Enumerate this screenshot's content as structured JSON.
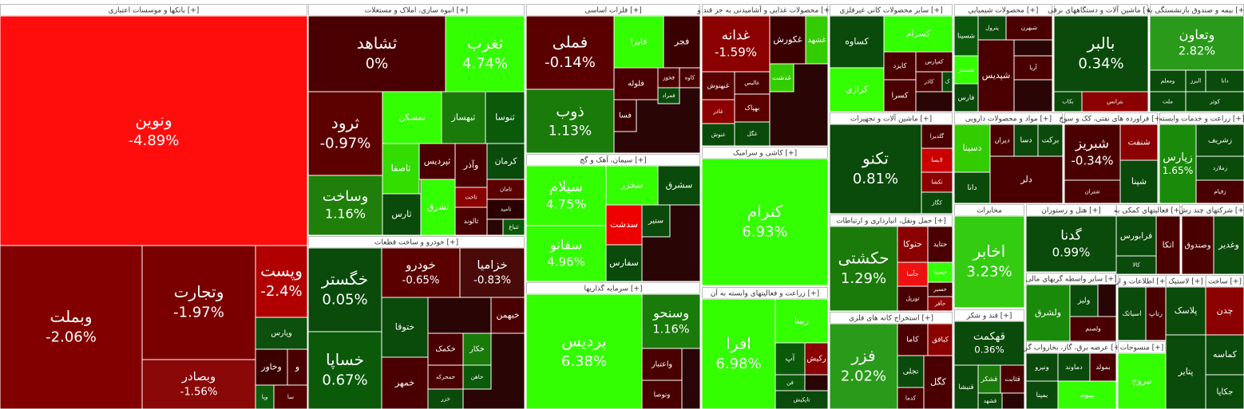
{
  "chart_data": {
    "type": "treemap",
    "sectors": [
      {
        "title": "بانکها و موسسات اعتباری [+]",
        "tiles": [
          {
            "name": "ونوین",
            "change": -4.89,
            "change_label": "-4.89%",
            "color": "#ff0d0d"
          },
          {
            "name": "وبملت",
            "change": -2.06,
            "change_label": "-2.06%",
            "color": "#820000"
          },
          {
            "name": "وتجارت",
            "change": -1.97,
            "change_label": "-1.97%",
            "color": "#7a0000"
          },
          {
            "name": "وبصادر",
            "change": -1.56,
            "change_label": "-1.56%",
            "color": "#8a0808"
          },
          {
            "name": "وپست",
            "change": -2.4,
            "change_label": "-2.4%",
            "color": "#b00000"
          },
          {
            "name": "وپارس",
            "color": "#0d4f0d"
          },
          {
            "name": "وخاور",
            "color": "#3a0000"
          },
          {
            "name": "و",
            "color": "#4a0000"
          },
          {
            "name": "سا",
            "color": "#550000"
          },
          {
            "name": "وپا",
            "color": "#0d5e0d"
          }
        ]
      },
      {
        "title": "انبوه سازی، املاک و مستغلات [+]",
        "tiles": [
          {
            "name": "ثشاهد",
            "change": 0,
            "change_label": "0%",
            "color": "#4a0000"
          },
          {
            "name": "ثغرب",
            "change": 4.74,
            "change_label": "4.74%",
            "color": "#33ff00"
          },
          {
            "name": "ثرود",
            "change": -0.97,
            "change_label": "-0.97%",
            "color": "#5c0000"
          },
          {
            "name": "وساخت",
            "change": 1.16,
            "change_label": "1.16%",
            "color": "#1f7f0a"
          },
          {
            "name": "ثمسکن",
            "color": "#33ff00"
          },
          {
            "name": "ثبهساز",
            "color": "#1a7a0a"
          },
          {
            "name": "ثنوسا",
            "color": "#0a5a0a"
          },
          {
            "name": "ثاصفا",
            "color": "#33dd00"
          },
          {
            "name": "ثپردیس",
            "color": "#4a0000"
          },
          {
            "name": "وآذر",
            "color": "#4a0000"
          },
          {
            "name": "کرمان",
            "color": "#0a4a0a"
          },
          {
            "name": "ثارس",
            "color": "#0a4a0a"
          },
          {
            "name": "ثشرق",
            "color": "#33ff00"
          },
          {
            "name": "ثاخت",
            "color": "#8b0000"
          },
          {
            "name": "ثامان",
            "color": "#5a0000"
          },
          {
            "name": "ثالوند",
            "color": "#4a0000"
          },
          {
            "name": "ثامید",
            "color": "#2a0000"
          },
          {
            "name": "ثتباع",
            "color": "#0a5a0a"
          }
        ]
      },
      {
        "title": "خودرو و ساخت قطعات [+]",
        "tiles": [
          {
            "name": "خگستر",
            "change": 0.05,
            "change_label": "0.05%",
            "color": "#0a4a0a"
          },
          {
            "name": "خساپا",
            "change": 0.67,
            "change_label": "0.67%",
            "color": "#0a5a0a"
          },
          {
            "name": "خودرو",
            "change": -0.65,
            "change_label": "-0.65%",
            "color": "#5a0000"
          },
          {
            "name": "خزامیا",
            "change": -0.83,
            "change_label": "-0.83%",
            "color": "#4a0a0a"
          },
          {
            "name": "خبهمن",
            "color": "#4a0000"
          },
          {
            "name": "خکمک",
            "color": "#4a0000"
          },
          {
            "name": "خکار",
            "color": "#1a7a0a"
          },
          {
            "name": "خمحرکه",
            "color": "#4a0000"
          },
          {
            "name": "خزر",
            "color": "#0a4a0a"
          },
          {
            "name": "ختوقا",
            "color": "#0a4a0a"
          },
          {
            "name": "خاهن",
            "color": "#0a5a0a"
          },
          {
            "name": "خمهر",
            "color": "#4a0000"
          }
        ]
      },
      {
        "title": "فلزات اساسی [+]",
        "tiles": [
          {
            "name": "فملی",
            "change": -0.14,
            "change_label": "-0.14%",
            "color": "#5a0000"
          },
          {
            "name": "ذوب",
            "change": 1.13,
            "change_label": "1.13%",
            "color": "#1a7a0a"
          },
          {
            "name": "فایرا",
            "color": "#33ff00"
          },
          {
            "name": "فجر",
            "color": "#3a0000"
          },
          {
            "name": "فلوله",
            "color": "#4a0000"
          },
          {
            "name": "فخوز",
            "color": "#4a0000"
          },
          {
            "name": "کاوه",
            "color": "#4a0000"
          },
          {
            "name": "فمراد",
            "color": "#0a4a0a"
          },
          {
            "name": "فسا",
            "color": "#3a0000"
          }
        ]
      },
      {
        "title": "سیمان، آهک و گچ [+]",
        "tiles": [
          {
            "name": "سیلام",
            "change": 4.75,
            "change_label": "4.75%",
            "color": "#33ff00"
          },
          {
            "name": "سفانو",
            "change": 4.96,
            "change_label": "4.96%",
            "color": "#33ff00"
          },
          {
            "name": "سخزر",
            "color": "#33ff00"
          },
          {
            "name": "سشرق",
            "color": "#0a4a0a"
          },
          {
            "name": "سدشت",
            "color": "#ee0000"
          },
          {
            "name": "ستیر",
            "color": "#0a4a0a"
          },
          {
            "name": "سفارس",
            "color": "#0a4a0a"
          }
        ]
      },
      {
        "title": "سرمایه گذاریها [+]",
        "tiles": [
          {
            "name": "پردیس",
            "change": 6.38,
            "change_label": "6.38%",
            "color": "#33ff00"
          },
          {
            "name": "وسنحو",
            "change": 1.16,
            "change_label": "1.16%",
            "color": "#1a7a0a"
          },
          {
            "name": "واعتبار",
            "color": "#4a0000"
          },
          {
            "name": "وتوصا",
            "color": "#4a0000"
          }
        ]
      },
      {
        "title": "محصولات غذایی و آشامیدنی به جز قند و [+]",
        "tiles": [
          {
            "name": "غدانه",
            "change": -1.59,
            "change_label": "-1.59%",
            "color": "#8b0000"
          },
          {
            "name": "غکورش",
            "color": "#3a0000"
          },
          {
            "name": "غشهد",
            "color": "#33cc00"
          },
          {
            "name": "عالیس",
            "color": "#4a0000"
          },
          {
            "name": "غبهنوش",
            "color": "#5a0000"
          },
          {
            "name": "غاذر",
            "color": "#8b0000"
          },
          {
            "name": "غنوش",
            "color": "#0a4a0a"
          },
          {
            "name": "غدشت",
            "color": "#33cc00"
          },
          {
            "name": "بهپاک",
            "color": "#5a0000"
          },
          {
            "name": "غگل",
            "color": "#0a4a0a"
          }
        ]
      },
      {
        "title": "کاشی و سرامیک [+]",
        "tiles": [
          {
            "name": "کترام",
            "change": 6.93,
            "change_label": "6.93%",
            "color": "#33ff00"
          }
        ]
      },
      {
        "title": "زراعت و فعالیتهای وابسته به آن [+]",
        "tiles": [
          {
            "name": "افرا",
            "change": 6.98,
            "change_label": "6.98%",
            "color": "#33ff00"
          },
          {
            "name": "زبینا",
            "color": "#33ff00"
          },
          {
            "name": "آپ",
            "color": "#0a5a0a"
          },
          {
            "name": "رکیش",
            "color": "#8b0000"
          },
          {
            "name": "فن",
            "color": "#0a5a0a"
          },
          {
            "name": "تاپکیش",
            "color": "#0a4a0a"
          }
        ]
      },
      {
        "title": "سایر محصولات کانی غیرفلزی [+]",
        "tiles": [
          {
            "name": "کساوه",
            "color": "#0a4a0a"
          },
          {
            "name": "کسرام",
            "color": "#33ff00"
          },
          {
            "name": "کرازی",
            "color": "#33ff00"
          },
          {
            "name": "کایزد",
            "color": "#4a0000"
          },
          {
            "name": "کفپارس",
            "color": "#4a0000"
          },
          {
            "name": "کاذر",
            "color": "#4a0000"
          },
          {
            "name": "کسرا",
            "color": "#4a0000"
          },
          {
            "name": "ک",
            "color": "#0a4a0a"
          }
        ]
      },
      {
        "title": "ماشین آلات و تجهیزات [+]",
        "tiles": [
          {
            "name": "تکنو",
            "change": 0.81,
            "change_label": "0.81%",
            "color": "#0a4a0a"
          },
          {
            "name": "گلدیرا",
            "color": "#4a0000"
          },
          {
            "name": "لابسا",
            "color": "#cc0000"
          },
          {
            "name": "تکشا",
            "color": "#8b0000"
          },
          {
            "name": "کگاز",
            "color": "#0a4a0a"
          }
        ]
      },
      {
        "title": "حمل ونقل، انبارداری و ارتباطات [+]",
        "tiles": [
          {
            "name": "حکشتی",
            "change": 1.29,
            "change_label": "1.29%",
            "color": "#1a7a0a"
          },
          {
            "name": "حتوکا",
            "color": "#8b0000"
          },
          {
            "name": "حتاید",
            "color": "#4a0000"
          },
          {
            "name": "حآسا",
            "color": "#ee1111"
          },
          {
            "name": "حسینا",
            "color": "#33ff00"
          },
          {
            "name": "تورپل",
            "color": "#4a0000"
          },
          {
            "name": "حسیر",
            "color": "#4a0000"
          },
          {
            "name": "حآفر",
            "color": "#8b0000"
          }
        ]
      },
      {
        "title": "استخراج کانه های فلزی [+]",
        "tiles": [
          {
            "name": "فزر",
            "change": 2.02,
            "change_label": "2.02%",
            "color": "#2a9a1a"
          },
          {
            "name": "کاما",
            "color": "#4a0000"
          },
          {
            "name": "کبافق",
            "color": "#8b0000"
          },
          {
            "name": "تجلی",
            "color": "#0a4a0a"
          },
          {
            "name": "کدما",
            "color": "#4a0000"
          },
          {
            "name": "کگل",
            "color": "#4a0000"
          }
        ]
      },
      {
        "title": "محصولات شیمیایی [+]",
        "tiles": [
          {
            "name": "شسینا",
            "color": "#0a5a0a"
          },
          {
            "name": "پترول",
            "color": "#0a4a0a"
          },
          {
            "name": "شبهرن",
            "color": "#4a0000"
          },
          {
            "name": "شبندر",
            "color": "#33ff00"
          },
          {
            "name": "آریا",
            "color": "#4a0000"
          },
          {
            "name": "فارس",
            "color": "#0a4a0a"
          },
          {
            "name": "شپدیس",
            "color": "#4a0000"
          }
        ]
      },
      {
        "title": "مواد و محصولات دارویی [+]",
        "tiles": [
          {
            "name": "دسینا",
            "color": "#33cc00"
          },
          {
            "name": "دانا",
            "color": "#0a4a0a"
          },
          {
            "name": "دیران",
            "color": "#4a0000"
          },
          {
            "name": "دسا",
            "color": "#0a4a0a"
          },
          {
            "name": "برکت",
            "color": "#0a4a0a"
          },
          {
            "name": "دلر",
            "color": "#4a0000"
          }
        ]
      },
      {
        "title": "مخابرات",
        "tiles": [
          {
            "name": "اخابر",
            "change": 3.23,
            "change_label": "3.23%",
            "color": "#33cc11"
          }
        ]
      },
      {
        "title": "قند و شکر [+]",
        "tiles": [
          {
            "name": "قهکمت",
            "change": 0.36,
            "change_label": "0.36%",
            "color": "#0a4a0a"
          },
          {
            "name": "قنیشا",
            "color": "#0a4a0a"
          },
          {
            "name": "قشکر",
            "color": "#1a7a0a"
          },
          {
            "name": "قشهد",
            "color": "#0a4a0a"
          },
          {
            "name": "قثابت",
            "color": "#4a0000"
          }
        ]
      },
      {
        "title": "ماشین آلات و دستگاههای برقی [+]",
        "tiles": [
          {
            "name": "بالبر",
            "change": 0.34,
            "change_label": "0.34%",
            "color": "#0a4a0a"
          },
          {
            "name": "بکاب",
            "color": "#0a4a0a"
          },
          {
            "name": "بترانس",
            "color": "#8b0000"
          }
        ]
      },
      {
        "title": "بیمه و صندوق بازنشستگی به [+]",
        "tiles": [
          {
            "name": "وتعاون",
            "change": 2.82,
            "change_label": "2.82%",
            "color": "#2a9a1a"
          },
          {
            "name": "ومعلم",
            "color": "#0a4a0a"
          },
          {
            "name": "البرز",
            "color": "#0a4a0a"
          },
          {
            "name": "دانا",
            "color": "#0a4a0a"
          },
          {
            "name": "ملت",
            "color": "#0a4a0a"
          },
          {
            "name": "کوثر",
            "color": "#0a4a0a"
          }
        ]
      },
      {
        "title": "فراورده های نفتی، کک و سوخ [+]",
        "tiles": [
          {
            "name": "شبریز",
            "change": -0.34,
            "change_label": "-0.34%",
            "color": "#4a0000"
          },
          {
            "name": "شنفت",
            "color": "#8b0000"
          },
          {
            "name": "شپنا",
            "color": "#0a4a0a"
          },
          {
            "name": "شتران",
            "color": "#4a0000"
          }
        ]
      },
      {
        "title": "زراعت و خدمات وابسته [+]",
        "tiles": [
          {
            "name": "زپارس",
            "change": 1.65,
            "change_label": "1.65%",
            "color": "#1a8a0a"
          },
          {
            "name": "زشریف",
            "color": "#0a4a0a"
          },
          {
            "name": "زملارد",
            "color": "#0a4a0a"
          },
          {
            "name": "زقیام",
            "color": "#4a0000"
          }
        ]
      },
      {
        "title": "هتل و رستوران [+]",
        "tiles": [
          {
            "name": "گدنا",
            "change": 0.99,
            "change_label": "0.99%",
            "color": "#0a4a0a"
          }
        ]
      },
      {
        "title": "فعالیتهای کمکی به [+]",
        "tiles": [
          {
            "name": "فرابورس",
            "color": "#0a4a0a"
          },
          {
            "name": "اتکا",
            "color": "#4a0000"
          },
          {
            "name": "کالا",
            "color": "#0a4a0a"
          }
        ]
      },
      {
        "title": "شرکتهای چند رش [+]",
        "tiles": [
          {
            "name": "وصندوق",
            "color": "#4a0000"
          },
          {
            "name": "وغدیر",
            "color": "#0a4a0a"
          }
        ]
      },
      {
        "title": "سایر واسطه گریهای مالی [+]",
        "tiles": [
          {
            "name": "ولشرق",
            "color": "#1a8a0a"
          },
          {
            "name": "ولیز",
            "color": "#0a4a0a"
          },
          {
            "name": "ولصنم",
            "color": "#4a0000"
          }
        ]
      },
      {
        "title": "عرضه برق، گاز، بخارواب گرم [+]",
        "tiles": [
          {
            "name": "ونیرو",
            "color": "#0a4a0a"
          },
          {
            "name": "دماوند",
            "color": "#0a4a0a"
          },
          {
            "name": "بمولد",
            "color": "#4a0000"
          },
          {
            "name": "بمپنا",
            "color": "#0a4a0a"
          },
          {
            "name": "بپیوند",
            "color": "#33ff00"
          }
        ]
      },
      {
        "title": "اطلاعات و ار [+]",
        "tiles": [
          {
            "name": "اسیاتک",
            "color": "#0a4a0a"
          },
          {
            "name": "رتاپ",
            "color": "#4a0000"
          }
        ]
      },
      {
        "title": "منسوجات [+]",
        "tiles": [
          {
            "name": "نبروج",
            "color": "#33ff00"
          }
        ]
      },
      {
        "title": "لاستیک [+]",
        "tiles": [
          {
            "name": "پلاسک",
            "color": "#0a4a0a"
          },
          {
            "name": "پتایر",
            "color": "#0a4a0a"
          }
        ]
      },
      {
        "title": "ساخت [+]",
        "tiles": [
          {
            "name": "چدن",
            "color": "#8b0000"
          },
          {
            "name": "کماسه",
            "color": "#0a4a0a"
          },
          {
            "name": "جکاپا",
            "color": "#0a4a0a"
          }
        ]
      }
    ]
  }
}
